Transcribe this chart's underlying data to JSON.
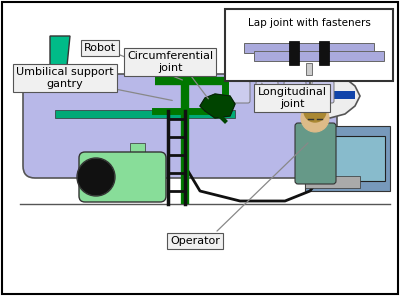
{
  "figsize": [
    4.0,
    2.96
  ],
  "dpi": 100,
  "bg_color": "#ffffff",
  "border_color": "#000000",
  "labels": {
    "robot": "Robot",
    "circumferential": "Circumferential\njoint",
    "umbilical": "Umbilical support\ngantry",
    "lap_joint": "Lap joint with fasteners",
    "longitudinal": "Longitudinal\njoint",
    "operator": "Operator"
  },
  "fuselage_color": "#b8b8e8",
  "fuselage_edge": "#555555",
  "wing_color": "#99ddcc",
  "wing_dark": "#00aa77",
  "tail_color": "#00bb88",
  "tail_edge": "#333333",
  "engine_body": "#88dd99",
  "engine_edge": "#333333",
  "engine_intake": "#111111",
  "gantry_color": "#007700",
  "ladder_color": "#111111",
  "cable_color": "#111111",
  "robot_color": "#004400",
  "nose_color": "#eeeeee",
  "nose_edge": "#555555",
  "blue_stripe": "#1144aa",
  "window_color": "#ccccee",
  "window_edge": "#777777",
  "label_bg": "#f0f0f0",
  "label_edge": "#555555",
  "annotation_color": "#888888",
  "lap_plate_color": "#aaaadd",
  "lap_plate_edge": "#666666",
  "fastener_color": "#111111",
  "bolt_color": "#cccccc",
  "inset_bg": "#ffffff",
  "inset_edge": "#333333",
  "ground_color": "#555555"
}
